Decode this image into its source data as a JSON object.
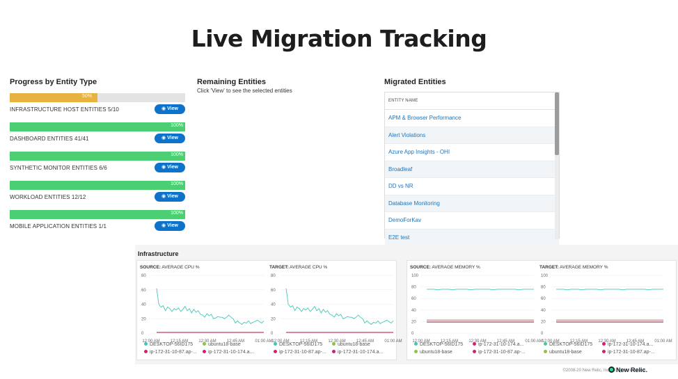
{
  "page": {
    "title": "Live Migration Tracking"
  },
  "progress": {
    "heading": "Progress by Entity Type",
    "view_label": "View",
    "entities": [
      {
        "label": "INFRASTRUCTURE HOST ENTITIES 5/10",
        "pct": "50%",
        "fraction": 0.5,
        "color": "#e8b241"
      },
      {
        "label": "DASHBOARD ENTITIES 41/41",
        "pct": "100%",
        "fraction": 1.0,
        "color": "#4ccf73"
      },
      {
        "label": "SYNTHETIC MONITOR ENTITIES 6/6",
        "pct": "100%",
        "fraction": 1.0,
        "color": "#4ccf73"
      },
      {
        "label": "WORKLOAD ENTITIES 12/12",
        "pct": "100%",
        "fraction": 1.0,
        "color": "#4ccf73"
      },
      {
        "label": "MOBILE APPLICATION ENTITIES 1/1",
        "pct": "100%",
        "fraction": 1.0,
        "color": "#4ccf73"
      }
    ]
  },
  "remaining": {
    "heading": "Remaining Entities",
    "subtitle": "Click 'View' to see the selected entities"
  },
  "migrated": {
    "heading": "Migrated Entities",
    "column": "ENTITY NAME",
    "rows": [
      "APM & Browser Performance",
      "Alert Violations",
      "Azure App Insights - OHI",
      "Broadleaf",
      "DD vs NR",
      "Database Monitoring",
      "DemoForKav",
      "E2E test"
    ]
  },
  "infrastructure": {
    "heading": "Infrastructure",
    "colors": {
      "teal": "#43c6b6",
      "green": "#8cc63f",
      "magenta": "#d81b74",
      "crimson": "#b5123f",
      "salmon": "#e07a8a"
    },
    "charts": [
      {
        "title_prefix": "SOURCE:",
        "title_metric": "AVERAGE CPU %",
        "y_ticks": [
          "80",
          "60",
          "40",
          "20",
          "0"
        ],
        "y_max": 80,
        "x_ticks": [
          "12:00 AM",
          "12:15 AM",
          "12:30 AM",
          "12:45 AM",
          "01:00 AM"
        ],
        "series": [
          {
            "color": "#43c6b6",
            "values": [
              62,
              40,
              36,
              38,
              31,
              36,
              34,
              30,
              34,
              32,
              35,
              30,
              33,
              37,
              31,
              34,
              28,
              33,
              29,
              31,
              26,
              25,
              22,
              27,
              24,
              26,
              20,
              21,
              23,
              22,
              22,
              20,
              22,
              25,
              22,
              20,
              14,
              17,
              14,
              12,
              15,
              14,
              17,
              13,
              15,
              16,
              18,
              16,
              14,
              17
            ]
          },
          {
            "color": "#b5123f",
            "values": [
              1,
              1,
              1,
              1,
              1,
              1,
              1,
              1,
              1,
              1,
              1,
              1,
              1,
              1,
              1,
              1,
              1,
              1,
              1,
              1,
              1,
              1,
              1,
              1,
              1,
              1,
              1,
              1,
              1,
              1,
              1,
              1,
              1,
              1,
              1,
              1,
              1,
              1,
              1,
              1,
              1,
              1,
              1,
              1,
              1,
              1,
              1,
              1,
              1,
              1
            ]
          }
        ],
        "legend": [
          {
            "label": "DESKTOP-56ID175",
            "color": "#43c6b6"
          },
          {
            "label": "ubuntu18-base",
            "color": "#8cc63f"
          },
          {
            "label": "ip-172-31-10-87.ap-...",
            "color": "#d81b74"
          },
          {
            "label": "ip-172-31-10-174.a...",
            "color": "#d81b74"
          }
        ]
      },
      {
        "title_prefix": "TARGET:",
        "title_metric": "AVERAGE CPU %",
        "y_ticks": [
          "80",
          "60",
          "40",
          "20",
          "0"
        ],
        "y_max": 80,
        "x_ticks": [
          "12:00 AM",
          "12:15 AM",
          "12:30 AM",
          "12:45 AM",
          "01:00 AM"
        ],
        "series": [
          {
            "color": "#43c6b6",
            "values": [
              62,
              40,
              36,
              38,
              31,
              36,
              34,
              30,
              34,
              32,
              35,
              30,
              33,
              37,
              31,
              34,
              28,
              33,
              29,
              31,
              26,
              25,
              22,
              27,
              24,
              26,
              20,
              21,
              23,
              22,
              22,
              20,
              22,
              25,
              22,
              20,
              14,
              17,
              14,
              12,
              15,
              14,
              17,
              13,
              15,
              16,
              18,
              16,
              14,
              17
            ]
          },
          {
            "color": "#b5123f",
            "values": [
              1,
              1,
              1,
              1,
              1,
              1,
              1,
              1,
              1,
              1,
              1,
              1,
              1,
              1,
              1,
              1,
              1,
              1,
              1,
              1,
              1,
              1,
              1,
              1,
              1,
              1,
              1,
              1,
              1,
              1,
              1,
              1,
              1,
              1,
              1,
              1,
              1,
              1,
              1,
              1,
              1,
              1,
              1,
              1,
              1,
              1,
              1,
              1,
              1,
              1
            ]
          }
        ],
        "legend": [
          {
            "label": "DESKTOP-56ID175",
            "color": "#43c6b6"
          },
          {
            "label": "ubuntu18-base",
            "color": "#8cc63f"
          },
          {
            "label": "ip-172-31-10-87.ap-...",
            "color": "#d81b74"
          },
          {
            "label": "ip-172-31-10-174.a...",
            "color": "#d81b74"
          }
        ]
      },
      {
        "title_prefix": "SOURCE:",
        "title_metric": "AVERAGE MEMORY %",
        "y_ticks": [
          "100",
          "80",
          "60",
          "40",
          "20",
          "0"
        ],
        "y_max": 100,
        "x_ticks": [
          "12:00 AM",
          "12:15 AM",
          "12:30 AM",
          "12:45 AM",
          "01:00 AM"
        ],
        "series": [
          {
            "color": "#43c6b6",
            "values": [
              76,
              76,
              76,
              75,
              76,
              76,
              76,
              75,
              76,
              76,
              76,
              76,
              75,
              76,
              76,
              76,
              76,
              76,
              75,
              76,
              76,
              76,
              76,
              76,
              76,
              75,
              76,
              76,
              76,
              76
            ]
          },
          {
            "color": "#e07a8a",
            "values": [
              23,
              23,
              23,
              23,
              23,
              23,
              23,
              23,
              23,
              23,
              23,
              23,
              23,
              23,
              23,
              23,
              23,
              23,
              23,
              23,
              23,
              23,
              23,
              23,
              23,
              23,
              23,
              23,
              23,
              23
            ]
          },
          {
            "color": "#b5123f",
            "values": [
              19,
              19,
              19,
              19,
              19,
              19,
              19,
              19,
              19,
              19,
              19,
              19,
              19,
              19,
              19,
              19,
              19,
              19,
              19,
              19,
              19,
              19,
              19,
              19,
              19,
              19,
              19,
              19,
              19,
              19
            ]
          },
          {
            "color": "#8cc63f",
            "values": [
              21,
              21,
              21,
              21,
              21,
              21,
              21,
              21,
              21,
              21,
              21,
              21,
              21,
              21,
              21,
              21,
              21,
              21,
              21,
              21,
              21,
              21,
              21,
              21,
              21,
              21,
              21,
              21,
              21,
              21
            ]
          }
        ],
        "legend": [
          {
            "label": "DESKTOP-56ID175",
            "color": "#43c6b6"
          },
          {
            "label": "ip-172-31-10-174.a...",
            "color": "#d81b74"
          },
          {
            "label": "ubuntu18-base",
            "color": "#8cc63f"
          },
          {
            "label": "ip-172-31-10-87.ap-...",
            "color": "#d81b74"
          }
        ]
      },
      {
        "title_prefix": "TARGET:",
        "title_metric": "AVERAGE MEMORY %",
        "y_ticks": [
          "100",
          "80",
          "60",
          "40",
          "20",
          "0"
        ],
        "y_max": 100,
        "x_ticks": [
          "12:00 AM",
          "12:15 AM",
          "12:30 AM",
          "12:45 AM",
          "01:00 AM"
        ],
        "series": [
          {
            "color": "#43c6b6",
            "values": [
              76,
              76,
              76,
              75,
              76,
              76,
              76,
              75,
              76,
              76,
              76,
              76,
              75,
              76,
              76,
              76,
              76,
              76,
              75,
              76,
              76,
              76,
              76,
              76,
              76,
              75,
              76,
              76,
              76,
              76
            ]
          },
          {
            "color": "#e07a8a",
            "values": [
              23,
              23,
              23,
              23,
              23,
              23,
              23,
              23,
              23,
              23,
              23,
              23,
              23,
              23,
              23,
              23,
              23,
              23,
              23,
              23,
              23,
              23,
              23,
              23,
              23,
              23,
              23,
              23,
              23,
              23
            ]
          },
          {
            "color": "#b5123f",
            "values": [
              19,
              19,
              19,
              19,
              19,
              19,
              19,
              19,
              19,
              19,
              19,
              19,
              19,
              19,
              19,
              19,
              19,
              19,
              19,
              19,
              19,
              19,
              19,
              19,
              19,
              19,
              19,
              19,
              19,
              19
            ]
          },
          {
            "color": "#8cc63f",
            "values": [
              21,
              21,
              21,
              21,
              21,
              21,
              21,
              21,
              21,
              21,
              21,
              21,
              21,
              21,
              21,
              21,
              21,
              21,
              21,
              21,
              21,
              21,
              21,
              21,
              21,
              21,
              21,
              21,
              21,
              21
            ]
          }
        ],
        "legend": [
          {
            "label": "DESKTOP-56ID175",
            "color": "#43c6b6"
          },
          {
            "label": "ip-172-31-10-174.a...",
            "color": "#d81b74"
          },
          {
            "label": "ubuntu18-base",
            "color": "#8cc63f"
          },
          {
            "label": "ip-172-31-10-87.ap-...",
            "color": "#d81b74"
          }
        ]
      }
    ]
  },
  "footer": {
    "copyright": "©2008-20 New Relic, Inc. All rights reserved",
    "logo": "New Relic."
  }
}
